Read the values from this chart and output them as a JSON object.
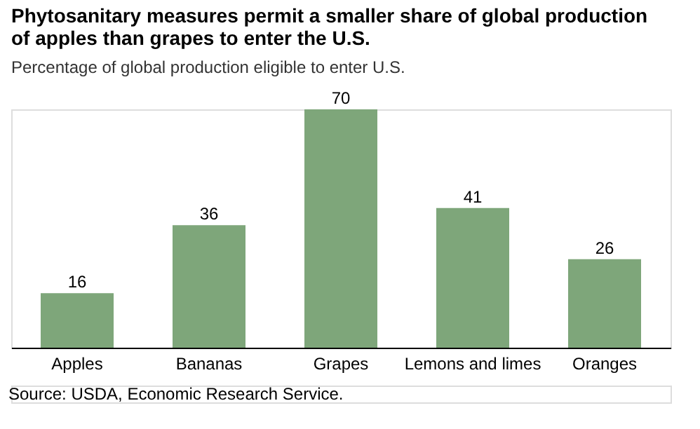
{
  "chart_data": {
    "type": "bar",
    "title": "Phytosanitary measures permit a smaller share of global production\nof apples than grapes to enter the U.S.",
    "subtitle": "Percentage of global production eligible to enter U.S.",
    "categories": [
      "Apples",
      "Bananas",
      "Grapes",
      "Lemons and limes",
      "Oranges"
    ],
    "values": [
      16,
      36,
      70,
      41,
      26
    ],
    "color": "#7ea67a",
    "data_labels": true,
    "grid": false,
    "annotations": [
      "Source: USDA, Economic Research Service."
    ]
  }
}
